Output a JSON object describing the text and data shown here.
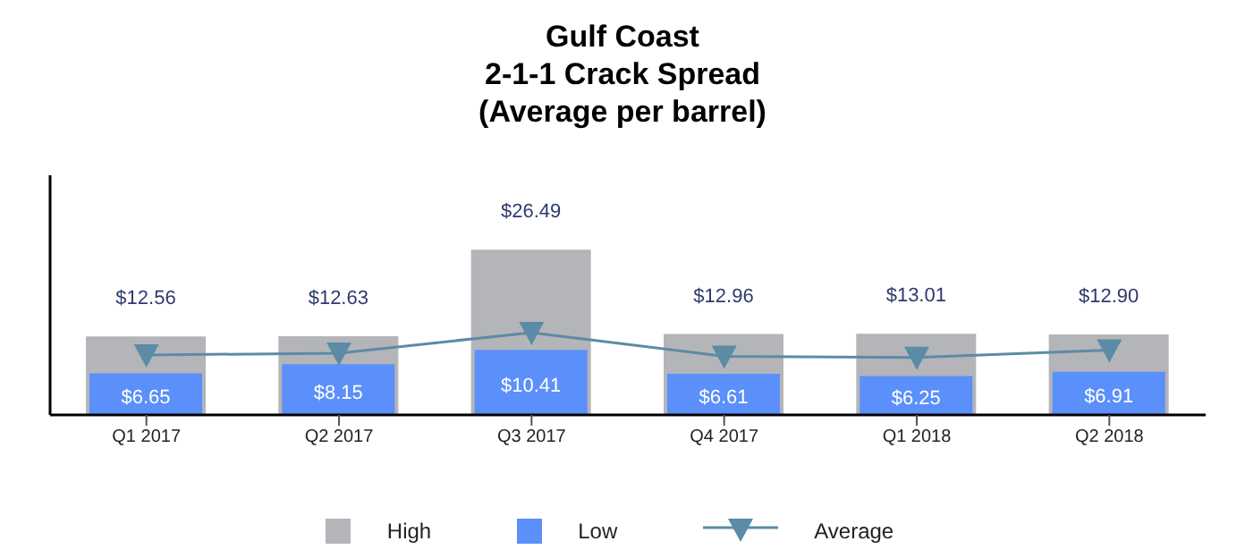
{
  "chart_data": {
    "type": "bar",
    "title": "Gulf Coast\n2-1-1 Crack Spread\n(Average per barrel)",
    "categories": [
      "Q1 2017",
      "Q2 2017",
      "Q3 2017",
      "Q4 2017",
      "Q1 2018",
      "Q2 2018"
    ],
    "series": [
      {
        "name": "High",
        "color": "#b4b5b9",
        "values": [
          12.56,
          12.63,
          26.49,
          12.96,
          13.01,
          12.9
        ],
        "value_labels": [
          "$12.56",
          "$12.63",
          "$26.49",
          "$12.96",
          "$13.01",
          "$12.90"
        ]
      },
      {
        "name": "Low",
        "color": "#5b8ff9",
        "values": [
          6.65,
          8.15,
          10.41,
          6.61,
          6.25,
          6.91
        ],
        "value_labels": [
          "$6.65",
          "$8.15",
          "$10.41",
          "$6.61",
          "$6.25",
          "$6.91"
        ]
      },
      {
        "name": "Average",
        "type": "line",
        "color": "#5b8ba6",
        "marker": "triangle",
        "values": [
          9.6,
          9.9,
          13.2,
          9.4,
          9.2,
          10.4
        ]
      }
    ],
    "tick_labels": "x",
    "legend": "bottom"
  }
}
